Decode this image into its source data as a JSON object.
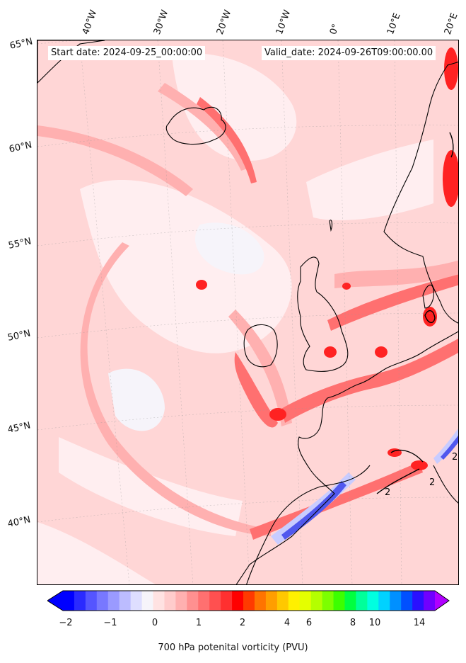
{
  "header": {
    "start_label": "Start date: 2024-09-25_00:00:00",
    "valid_label": "Valid_date: 2024-09-26T09:00:00.00"
  },
  "map": {
    "longitude_labels": [
      "40°W",
      "30°W",
      "20°W",
      "10°W",
      "0°",
      "10°E",
      "20°E"
    ],
    "latitude_labels": [
      "65°N",
      "60°N",
      "55°N",
      "50°N",
      "45°N",
      "40°N"
    ],
    "contour_label": "2",
    "colors": {
      "base": "#ffd6d6",
      "light": "#ffeef0",
      "white": "#f6f4fa",
      "mid": "#ffb0b0",
      "strong": "#ff7070",
      "deep": "#ff2222",
      "blue": "#5058ee",
      "paleblue": "#c8ccff",
      "coast": "#000000"
    }
  },
  "colorbar": {
    "title": "700 hPa potenital vorticity (PVU)",
    "tick_labels": [
      "−2",
      "−1",
      "0",
      "1",
      "2",
      "4",
      "6",
      "8",
      "10",
      "14"
    ],
    "colors": [
      "#0000ff",
      "#2a2aff",
      "#5555ff",
      "#7878ff",
      "#9a9aff",
      "#bcbcff",
      "#dedeff",
      "#f6f4fa",
      "#ffe2e2",
      "#ffcccc",
      "#ffb0b0",
      "#ff9090",
      "#ff7070",
      "#ff5050",
      "#ff3030",
      "#ff0000",
      "#ff3a00",
      "#ff7400",
      "#ff9e00",
      "#ffc800",
      "#fff000",
      "#e4ff00",
      "#b4ff00",
      "#7cff00",
      "#3cff00",
      "#00ff40",
      "#00ff9a",
      "#00ffe0",
      "#00d2ff",
      "#0090ff",
      "#0050ff",
      "#2a10ff",
      "#7000ff"
    ],
    "under_color": "#0000ff",
    "over_color": "#b000ff"
  }
}
